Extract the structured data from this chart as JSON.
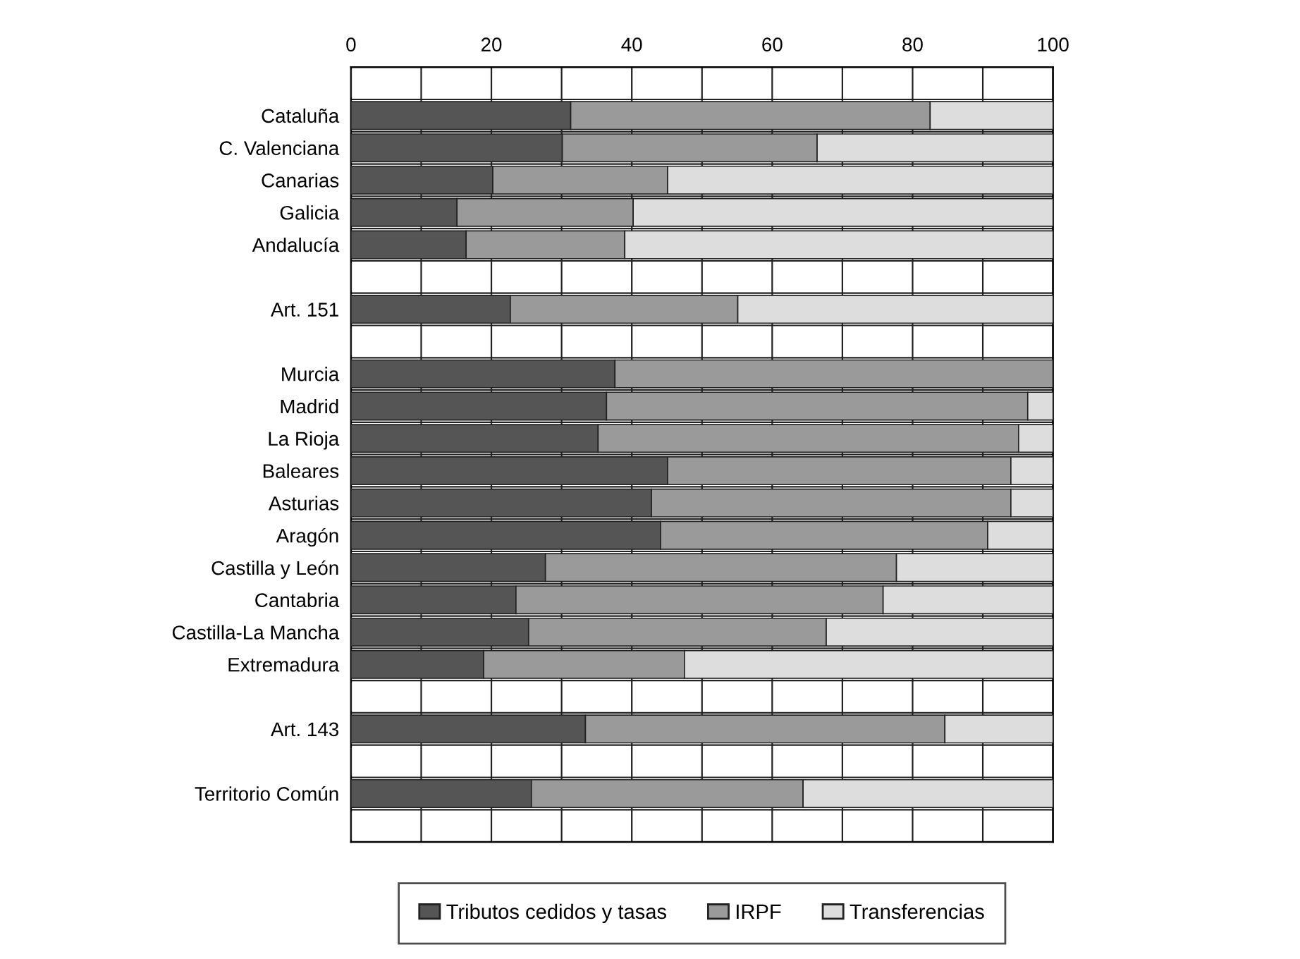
{
  "chart_data": {
    "type": "bar",
    "orientation": "horizontal",
    "stacked": true,
    "categories": [
      null,
      "Cataluña",
      "C. Valenciana",
      "Canarias",
      "Galicia",
      "Andalucía",
      null,
      "Art. 151",
      null,
      "Murcia",
      "Madrid",
      "La Rioja",
      "Baleares",
      "Asturias",
      "Aragón",
      "Castilla y León",
      "Cantabria",
      "Castilla-La Mancha",
      "Extremadura",
      null,
      "Art. 143",
      null,
      "Territorio Común",
      null
    ],
    "series": [
      {
        "name": "Tributos cedidos y tasas",
        "color": "#555555",
        "values": [
          null,
          31.3,
          30.1,
          20.2,
          15.1,
          16.4,
          null,
          22.7,
          null,
          37.6,
          36.4,
          35.2,
          45.1,
          42.8,
          44.1,
          27.7,
          23.5,
          25.3,
          18.9,
          null,
          33.4,
          null,
          25.7,
          null
        ]
      },
      {
        "name": "IRPF",
        "color": "#9a9a9a",
        "values": [
          null,
          51.2,
          36.3,
          24.9,
          25.1,
          22.6,
          null,
          32.4,
          null,
          62.4,
          60.0,
          59.9,
          48.9,
          51.2,
          46.6,
          50.0,
          52.3,
          42.4,
          28.6,
          null,
          51.2,
          null,
          38.7,
          null
        ]
      },
      {
        "name": "Transferencias",
        "color": "#dddddd",
        "values": [
          null,
          17.5,
          33.6,
          54.9,
          59.8,
          61.0,
          null,
          44.9,
          null,
          null,
          3.6,
          4.9,
          6.0,
          6.0,
          9.3,
          22.3,
          24.2,
          32.3,
          52.5,
          null,
          15.4,
          null,
          35.6,
          null
        ]
      }
    ],
    "xlim": [
      0,
      100
    ],
    "xticks": [
      0,
      {
        "value": 10,
        "label": null
      },
      20,
      {
        "value": 30,
        "label": null
      },
      40,
      {
        "value": 50,
        "label": null
      },
      60,
      {
        "value": 70,
        "label": null
      },
      80,
      {
        "value": 90,
        "label": null
      },
      100
    ],
    "grid": true,
    "legend": "bottom"
  }
}
